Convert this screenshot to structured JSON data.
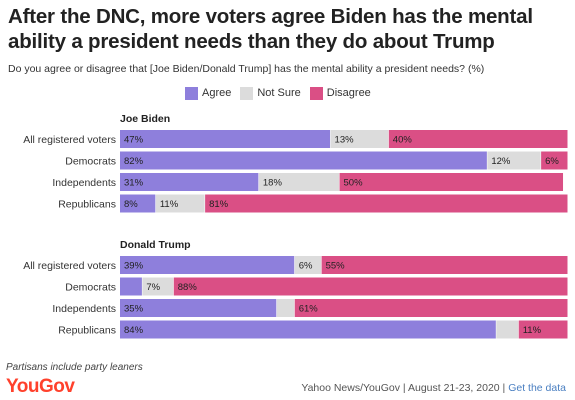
{
  "title": "After the DNC, more voters agree Biden has the mental ability a president needs than they do about Trump",
  "subtitle": "Do you agree or disagree that [Joe Biden/Donald Trump] has the mental ability a president needs? (%)",
  "footnote": "Partisans include party leaners",
  "brand": "YouGov",
  "source": {
    "text": "Yahoo News/YouGov | August 21-23, 2020 | ",
    "link": "Get the data"
  },
  "colors": {
    "agree": "#8e7fdc",
    "not_sure": "#dcdcdc",
    "disagree": "#da4f85",
    "brand": "#ff412c"
  },
  "chart_data": {
    "type": "bar",
    "orientation": "horizontal-stacked",
    "legend": [
      "Agree",
      "Not Sure",
      "Disagree"
    ],
    "legend_position": "top",
    "groups": [
      {
        "title": "Joe Biden",
        "rows": [
          {
            "category": "All registered voters",
            "agree": 47,
            "not_sure": 13,
            "disagree": 40
          },
          {
            "category": "Democrats",
            "agree": 82,
            "not_sure": 12,
            "disagree": 6
          },
          {
            "category": "Independents",
            "agree": 31,
            "not_sure": 18,
            "disagree": 50
          },
          {
            "category": "Republicans",
            "agree": 8,
            "not_sure": 11,
            "disagree": 81
          }
        ]
      },
      {
        "title": "Donald Trump",
        "rows": [
          {
            "category": "All registered voters",
            "agree": 39,
            "not_sure": 6,
            "disagree": 55
          },
          {
            "category": "Democrats",
            "agree": 5,
            "not_sure": 7,
            "disagree": 88,
            "hide_agree_label": true
          },
          {
            "category": "Independents",
            "agree": 35,
            "not_sure": 4,
            "disagree": 61,
            "hide_not_sure_label": true
          },
          {
            "category": "Republicans",
            "agree": 84,
            "not_sure": 5,
            "disagree": 11,
            "hide_not_sure_label": true
          }
        ]
      }
    ]
  }
}
